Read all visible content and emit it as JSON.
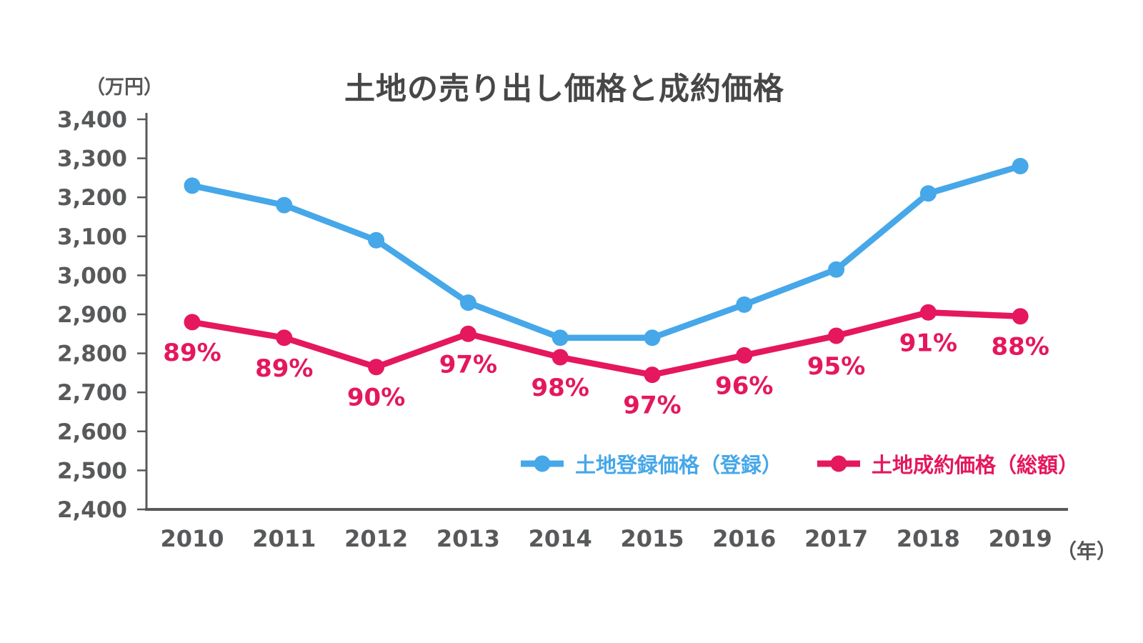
{
  "title": "土地の売り出し価格と成約価格",
  "y_axis_unit_label": "（万円）",
  "x_axis_unit_label": "（年）",
  "legend": {
    "items": [
      {
        "label": "土地登録価格（登録）",
        "color": "#46a7e9"
      },
      {
        "label": "土地成約価格（総額）",
        "color": "#e5175e"
      }
    ]
  },
  "chart_data": {
    "type": "line",
    "title": "土地の売り出し価格と成約価格",
    "x": [
      "2010",
      "2011",
      "2012",
      "2013",
      "2014",
      "2015",
      "2016",
      "2017",
      "2018",
      "2019"
    ],
    "xlabel": "年",
    "ylabel": "万円",
    "ylim": [
      2400,
      3400
    ],
    "grid": false,
    "legend_position": "inside-bottom",
    "y_ticks": [
      {
        "value": 3400,
        "label": "3,400"
      },
      {
        "value": 3300,
        "label": "3,300"
      },
      {
        "value": 3200,
        "label": "3,200"
      },
      {
        "value": 3100,
        "label": "3,100"
      },
      {
        "value": 3000,
        "label": "3,000"
      },
      {
        "value": 2900,
        "label": "2,900"
      },
      {
        "value": 2800,
        "label": "2,800"
      },
      {
        "value": 2700,
        "label": "2,700"
      },
      {
        "value": 2600,
        "label": "2,600"
      },
      {
        "value": 2500,
        "label": "2,500"
      },
      {
        "value": 2400,
        "label": "2,400"
      }
    ],
    "series": [
      {
        "name": "土地登録価格（登録）",
        "color": "#46a7e9",
        "values": [
          3230,
          3180,
          3090,
          2930,
          2840,
          2840,
          2925,
          3015,
          3210,
          3280
        ]
      },
      {
        "name": "土地成約価格（総額）",
        "color": "#e5175e",
        "values": [
          2880,
          2840,
          2765,
          2850,
          2790,
          2745,
          2795,
          2845,
          2905,
          2895
        ],
        "point_labels": [
          "89%",
          "89%",
          "90%",
          "97%",
          "98%",
          "97%",
          "96%",
          "95%",
          "91%",
          "88%"
        ]
      }
    ]
  },
  "colors": {
    "axis": "#58595b",
    "tick_text": "#58595b",
    "title_text": "#474747",
    "background": "#ffffff"
  }
}
